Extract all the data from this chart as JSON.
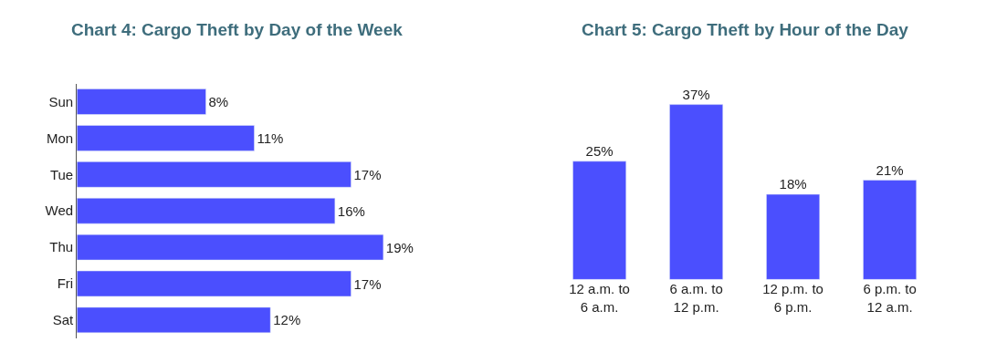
{
  "chart_data": [
    {
      "type": "bar",
      "title": "Chart 4: Cargo Theft by Day of the Week",
      "orientation": "horizontal",
      "categories": [
        "Sun",
        "Mon",
        "Tue",
        "Wed",
        "Thu",
        "Fri",
        "Sat"
      ],
      "values": [
        8,
        11,
        17,
        16,
        19,
        17,
        12
      ],
      "value_labels": [
        "8%",
        "11%",
        "17%",
        "16%",
        "19%",
        "17%",
        "12%"
      ],
      "color": "#4b4ffe"
    },
    {
      "type": "bar",
      "title": "Chart 5: Cargo Theft by Hour of the Day",
      "categories": [
        "12 a.m. to\n6 a.m.",
        "6 a.m. to\n12 p.m.",
        "12 p.m. to\n6 p.m.",
        "6 p.m. to\n12 a.m."
      ],
      "values": [
        25,
        37,
        18,
        21
      ],
      "value_labels": [
        "25%",
        "37%",
        "18%",
        "21%"
      ],
      "color": "#4b4ffe"
    }
  ]
}
